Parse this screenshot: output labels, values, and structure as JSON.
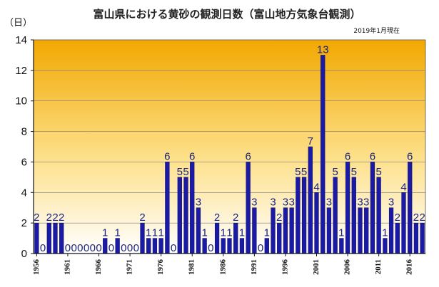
{
  "chart_data": {
    "type": "bar",
    "title": "富山県における黄砂の観測日数（富山地方気象台観測）",
    "note": "2019年1月現在",
    "ylabel": "（日）",
    "ylim": [
      0,
      14
    ],
    "yticks": [
      0,
      2,
      4,
      6,
      8,
      10,
      12,
      14
    ],
    "grid": true,
    "legend": "none",
    "categories": [
      1956,
      1957,
      1958,
      1959,
      1960,
      1961,
      1962,
      1963,
      1964,
      1965,
      1966,
      1967,
      1968,
      1969,
      1970,
      1971,
      1972,
      1973,
      1974,
      1975,
      1976,
      1977,
      1978,
      1979,
      1980,
      1981,
      1982,
      1983,
      1984,
      1985,
      1986,
      1987,
      1988,
      1989,
      1990,
      1991,
      1992,
      1993,
      1994,
      1995,
      1996,
      1997,
      1998,
      1999,
      2000,
      2001,
      2002,
      2003,
      2004,
      2005,
      2006,
      2007,
      2008,
      2009,
      2010,
      2011,
      2012,
      2013,
      2014,
      2015,
      2016,
      2017,
      2018
    ],
    "values": [
      2,
      0,
      2,
      2,
      2,
      0,
      0,
      0,
      0,
      0,
      0,
      1,
      0,
      1,
      0,
      0,
      0,
      2,
      1,
      1,
      1,
      6,
      0,
      5,
      5,
      6,
      3,
      1,
      0,
      2,
      1,
      1,
      2,
      1,
      6,
      3,
      0,
      1,
      3,
      2,
      3,
      3,
      5,
      5,
      7,
      4,
      13,
      3,
      5,
      1,
      6,
      5,
      3,
      3,
      6,
      5,
      1,
      3,
      2,
      4,
      6,
      2,
      2
    ],
    "xtick_labels": [
      "1956",
      "1961",
      "1966",
      "1971",
      "1976",
      "1981",
      "1986",
      "1991",
      "1996",
      "2001",
      "2006",
      "2011",
      "2016"
    ],
    "colors": {
      "bar": "#1a1aa6",
      "bar_edge": "#0d0d66",
      "bg_top": "#f2a800",
      "bg_bottom": "#ffffff",
      "grid": "#777777",
      "label": "#1a237e"
    }
  }
}
